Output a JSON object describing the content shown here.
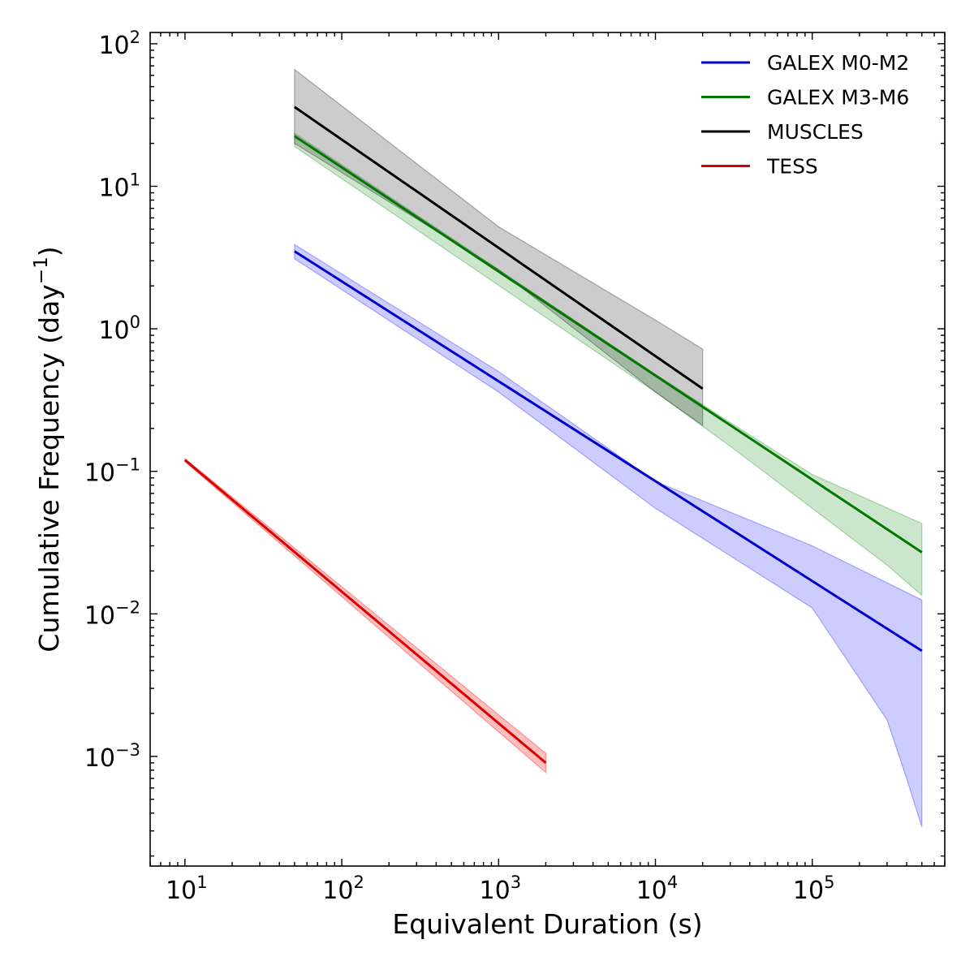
{
  "chart_data": {
    "type": "line",
    "title": "",
    "xlabel": "Equivalent Duration (s)",
    "ylabel": "Cumulative Frequency (day",
    "ylabel_sup": "−1",
    "ylabel_tail": ")",
    "xscale": "log",
    "yscale": "log",
    "xlim": [
      6,
      700000
    ],
    "ylim": [
      0.00017,
      120
    ],
    "x_tick_labels": [
      {
        "value": 10,
        "base": "10",
        "exp": "1"
      },
      {
        "value": 100,
        "base": "10",
        "exp": "2"
      },
      {
        "value": 1000,
        "base": "10",
        "exp": "3"
      },
      {
        "value": 10000,
        "base": "10",
        "exp": "4"
      },
      {
        "value": 100000,
        "base": "10",
        "exp": "5"
      }
    ],
    "y_tick_labels": [
      {
        "value": 0.001,
        "base": "10",
        "exp": "−3"
      },
      {
        "value": 0.01,
        "base": "10",
        "exp": "−2"
      },
      {
        "value": 0.1,
        "base": "10",
        "exp": "−1"
      },
      {
        "value": 1,
        "base": "10",
        "exp": "0"
      },
      {
        "value": 10,
        "base": "10",
        "exp": "1"
      },
      {
        "value": 100,
        "base": "10",
        "exp": "2"
      }
    ],
    "legend_position": "top-right",
    "series": [
      {
        "name": "GALEX M0-M2",
        "color": "#0000cc",
        "band_color": "#0000ff",
        "band_opacity": 0.2,
        "line": [
          [
            50,
            3.5
          ],
          [
            500000,
            0.0055
          ]
        ],
        "band_upper": [
          [
            50,
            3.9
          ],
          [
            1000,
            0.5
          ],
          [
            10000,
            0.085
          ],
          [
            100000,
            0.03
          ],
          [
            500000,
            0.0125
          ]
        ],
        "band_lower": [
          [
            50,
            3.1
          ],
          [
            1000,
            0.36
          ],
          [
            10000,
            0.055
          ],
          [
            100000,
            0.011
          ],
          [
            300000,
            0.0018
          ],
          [
            400000,
            0.0007
          ],
          [
            500000,
            0.00032
          ]
        ]
      },
      {
        "name": "GALEX M3-M6",
        "color": "#007700",
        "band_color": "#008000",
        "band_opacity": 0.2,
        "line": [
          [
            50,
            22.5
          ],
          [
            500000,
            0.027
          ]
        ],
        "band_upper": [
          [
            50,
            23.5
          ],
          [
            10000,
            0.48
          ],
          [
            30000,
            0.22
          ],
          [
            100000,
            0.095
          ],
          [
            500000,
            0.043
          ]
        ],
        "band_lower": [
          [
            50,
            19
          ],
          [
            10000,
            0.36
          ],
          [
            30000,
            0.15
          ],
          [
            100000,
            0.055
          ],
          [
            300000,
            0.022
          ],
          [
            500000,
            0.0135
          ]
        ]
      },
      {
        "name": "MUSCLES",
        "color": "#000000",
        "band_color": "#000000",
        "band_opacity": 0.2,
        "line": [
          [
            50,
            36
          ],
          [
            20000,
            0.38
          ]
        ],
        "band_upper": [
          [
            50,
            66
          ],
          [
            1000,
            5.2
          ],
          [
            10000,
            1.15
          ],
          [
            20000,
            0.72
          ]
        ],
        "band_lower": [
          [
            50,
            20
          ],
          [
            1000,
            2.6
          ],
          [
            10000,
            0.36
          ],
          [
            20000,
            0.21
          ]
        ]
      },
      {
        "name": "TESS",
        "color": "#dd0000",
        "band_color": "#ff0000",
        "band_opacity": 0.25,
        "line": [
          [
            10,
            0.12
          ],
          [
            2000,
            0.0009
          ]
        ],
        "band_upper": [
          [
            10,
            0.123
          ],
          [
            2000,
            0.00105
          ]
        ],
        "band_lower": [
          [
            10,
            0.117
          ],
          [
            2000,
            0.00077
          ]
        ]
      }
    ]
  }
}
